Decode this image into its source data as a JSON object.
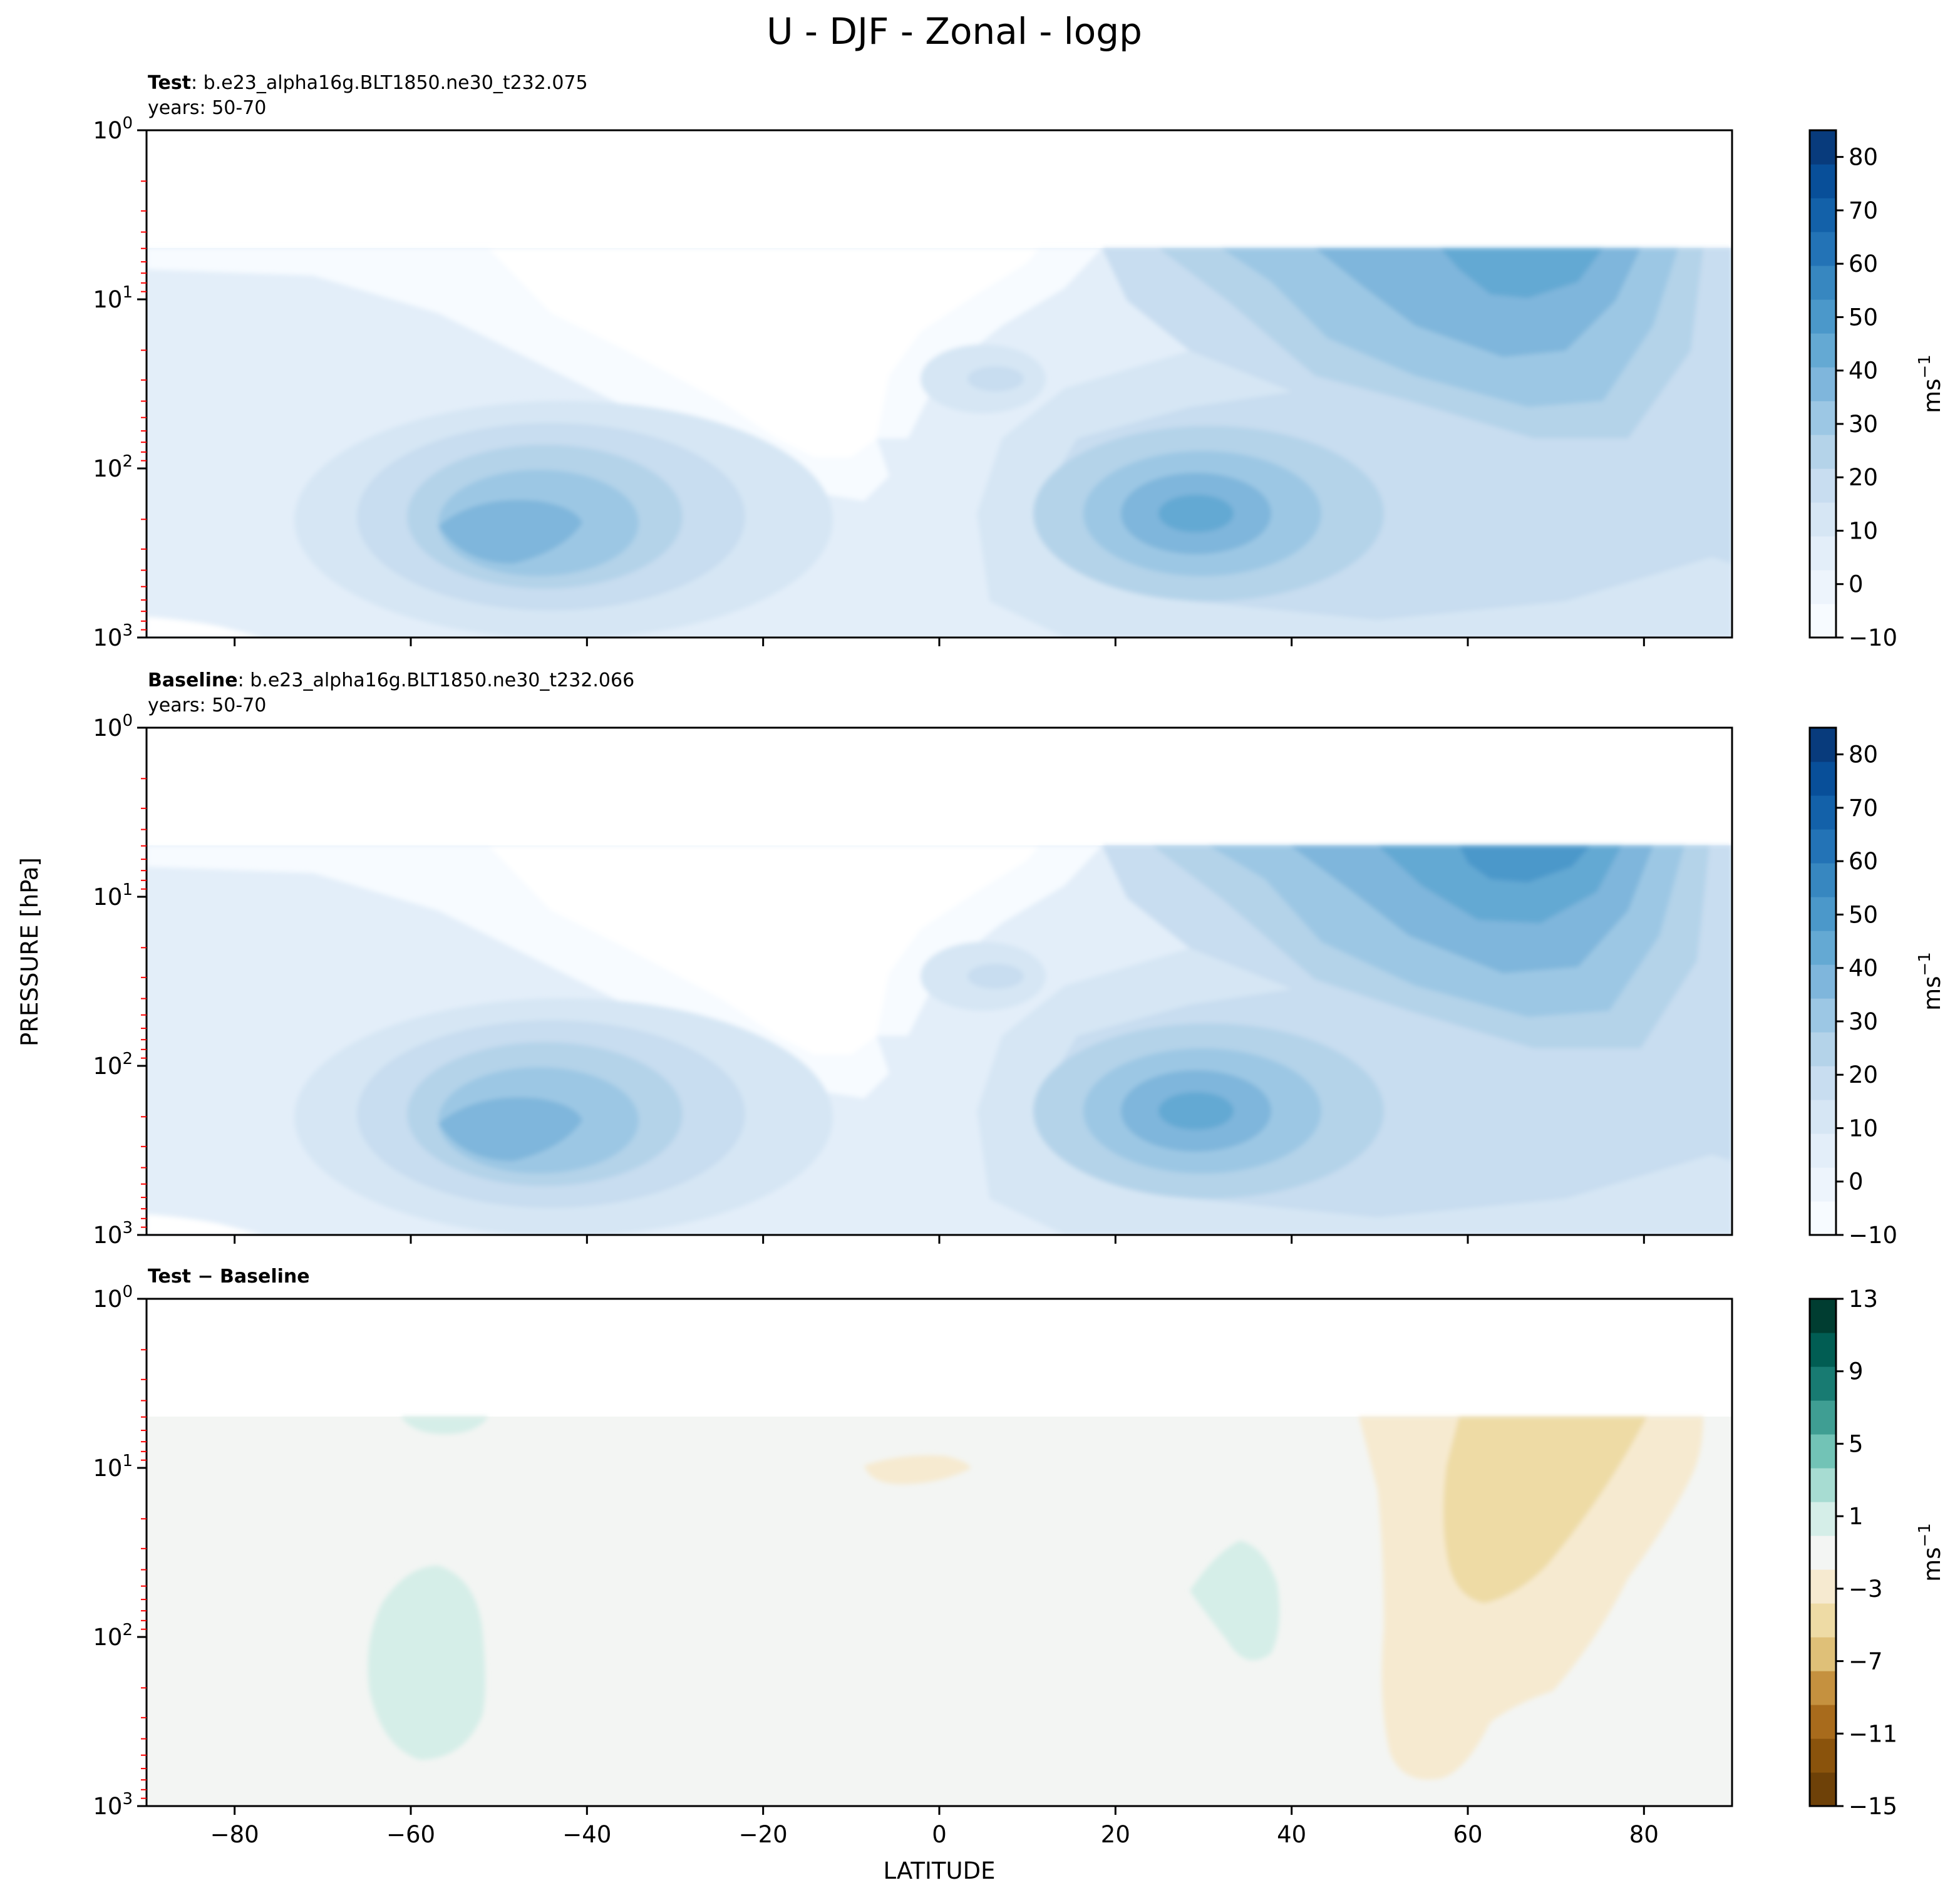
{
  "chart_data": {
    "type": "contourf",
    "title": "U - DJF - Zonal - logp",
    "xlabel": "LATITUDE",
    "ylabel": "PRESSURE [hPa]",
    "xlim": [
      -90,
      90
    ],
    "ylim": [
      1000,
      1
    ],
    "yscale": "log",
    "x_ticks": [
      -80,
      -60,
      -40,
      -20,
      0,
      20,
      40,
      60,
      80
    ],
    "x_tick_labels": [
      "−80",
      "−60",
      "−40",
      "−20",
      "0",
      "20",
      "40",
      "60",
      "80"
    ],
    "y_ticks": [
      1,
      10,
      100,
      1000
    ],
    "y_tick_labels": [
      "10^0",
      "10^1",
      "10^2",
      "10^3"
    ],
    "data_top_pressure_hPa": 5,
    "panels": [
      {
        "id": "test",
        "title_bold": "Test",
        "title_rest": ": b.e23_alpha16g.BLT1850.ne30_t232.075",
        "subtitle": "years: 50-70",
        "colormap": "Blues",
        "colorbar_label": "ms",
        "colorbar_label_sup": "−1",
        "colorbar_ticks": [
          -10,
          0,
          10,
          20,
          30,
          40,
          50,
          60,
          70,
          80
        ],
        "colorbar_tick_labels": [
          "−10",
          "0",
          "10",
          "20",
          "30",
          "40",
          "50",
          "60",
          "70",
          "80"
        ],
        "colorbar_range": [
          -10,
          85
        ],
        "features": [
          {
            "name": "SH subtropical jet",
            "lat": -46,
            "pressure_hPa": 250,
            "max": 40
          },
          {
            "name": "NH subtropical jet",
            "lat": 31,
            "pressure_hPa": 200,
            "max": 45
          },
          {
            "name": "NH polar night jet",
            "lat": 66,
            "pressure_hPa": 5,
            "max": 45
          },
          {
            "name": "Tropical upper minimum",
            "lat": -10,
            "pressure_hPa": 80,
            "max": -5
          }
        ]
      },
      {
        "id": "baseline",
        "title_bold": "Baseline",
        "title_rest": ": b.e23_alpha16g.BLT1850.ne30_t232.066",
        "subtitle": "years: 50-70",
        "colormap": "Blues",
        "colorbar_label": "ms",
        "colorbar_label_sup": "−1",
        "colorbar_ticks": [
          -10,
          0,
          10,
          20,
          30,
          40,
          50,
          60,
          70,
          80
        ],
        "colorbar_tick_labels": [
          "−10",
          "0",
          "10",
          "20",
          "30",
          "40",
          "50",
          "60",
          "70",
          "80"
        ],
        "colorbar_range": [
          -10,
          85
        ],
        "features": [
          {
            "name": "SH subtropical jet",
            "lat": -46,
            "pressure_hPa": 250,
            "max": 40
          },
          {
            "name": "NH subtropical jet",
            "lat": 31,
            "pressure_hPa": 200,
            "max": 45
          },
          {
            "name": "NH polar night jet",
            "lat": 66,
            "pressure_hPa": 5,
            "max": 50
          },
          {
            "name": "Tropical upper minimum",
            "lat": -10,
            "pressure_hPa": 80,
            "max": -5
          }
        ]
      },
      {
        "id": "diff",
        "title_bold": "Test − Baseline",
        "title_rest": "",
        "subtitle": "",
        "colormap": "BrBG",
        "colorbar_label": "ms",
        "colorbar_label_sup": "−1",
        "colorbar_ticks": [
          -15,
          -11,
          -7,
          -3,
          1,
          5,
          9,
          13
        ],
        "colorbar_tick_labels": [
          "−15",
          "−11",
          "−7",
          "−3",
          "1",
          "5",
          "9",
          "13"
        ],
        "colorbar_range": [
          -15,
          13
        ],
        "features": [
          {
            "name": "SH positive anomaly",
            "lat": -58,
            "pressure_hPa": 200,
            "value": 2
          },
          {
            "name": "SH upper positive anomaly",
            "lat": -56,
            "pressure_hPa": 5,
            "value": 2
          },
          {
            "name": "NH midlatitude positive anomaly",
            "lat": 34,
            "pressure_hPa": 80,
            "value": 2
          },
          {
            "name": "Tropical upper negative anomaly",
            "lat": -3,
            "pressure_hPa": 10,
            "value": -2
          },
          {
            "name": "NH polar negative anomaly",
            "lat": 66,
            "pressure_hPa": 20,
            "value": -5
          }
        ]
      }
    ]
  },
  "colors": {
    "blues": [
      "#f7fbff",
      "#edf4fc",
      "#e3eef9",
      "#d6e6f4",
      "#c8ddf0",
      "#b4d3e9",
      "#9cc7e4",
      "#7fb6dc",
      "#64a9d3",
      "#4b98ca",
      "#3787c0",
      "#2373b6",
      "#1361a9",
      "#084f99",
      "#083b7c"
    ],
    "brbg": [
      "#6e4108",
      "#8a530c",
      "#a86b1c",
      "#c5913f",
      "#dfc078",
      "#eedba5",
      "#f6ead0",
      "#f3f5f3",
      "#d5eee8",
      "#a7dcd2",
      "#72c3b6",
      "#3f9e93",
      "#187b72",
      "#015d53",
      "#003d31"
    ],
    "panel_background_fill": "#e3eef9",
    "diff_background_fill": "#f3f5f3",
    "minor_tick_color": "#ff0000"
  }
}
